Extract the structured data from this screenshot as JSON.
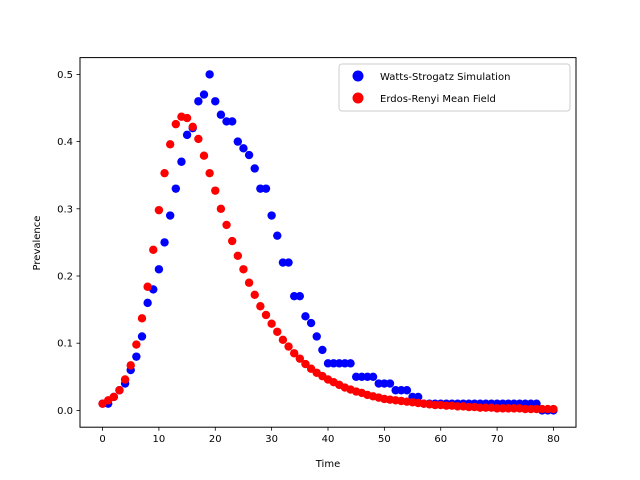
{
  "chart_data": {
    "type": "scatter",
    "title": "",
    "xlabel": "Time",
    "ylabel": "Prevalence",
    "xlim": [
      -4,
      84
    ],
    "ylim": [
      -0.025,
      0.525
    ],
    "xticks": [
      0,
      10,
      20,
      30,
      40,
      50,
      60,
      70,
      80
    ],
    "xtick_labels": [
      "0",
      "10",
      "20",
      "30",
      "40",
      "50",
      "60",
      "70",
      "80"
    ],
    "yticks": [
      0.0,
      0.1,
      0.2,
      0.3,
      0.4,
      0.5
    ],
    "ytick_labels": [
      "0.0",
      "0.1",
      "0.2",
      "0.3",
      "0.4",
      "0.5"
    ],
    "grid": false,
    "legend_position": "top-right",
    "x": [
      0,
      1,
      2,
      3,
      4,
      5,
      6,
      7,
      8,
      9,
      10,
      11,
      12,
      13,
      14,
      15,
      16,
      17,
      18,
      19,
      20,
      21,
      22,
      23,
      24,
      25,
      26,
      27,
      28,
      29,
      30,
      31,
      32,
      33,
      34,
      35,
      36,
      37,
      38,
      39,
      40,
      41,
      42,
      43,
      44,
      45,
      46,
      47,
      48,
      49,
      50,
      51,
      52,
      53,
      54,
      55,
      56,
      57,
      58,
      59,
      60,
      61,
      62,
      63,
      64,
      65,
      66,
      67,
      68,
      69,
      70,
      71,
      72,
      73,
      74,
      75,
      76,
      77,
      78,
      79,
      80
    ],
    "series": [
      {
        "name": "Watts-Strogatz Simulation",
        "color": "#0000ff",
        "values": [
          0.01,
          0.01,
          0.02,
          0.03,
          0.04,
          0.06,
          0.08,
          0.11,
          0.16,
          0.18,
          0.21,
          0.25,
          0.29,
          0.33,
          0.37,
          0.41,
          0.42,
          0.46,
          0.47,
          0.5,
          0.46,
          0.44,
          0.43,
          0.43,
          0.4,
          0.39,
          0.38,
          0.36,
          0.33,
          0.33,
          0.29,
          0.26,
          0.22,
          0.22,
          0.17,
          0.17,
          0.14,
          0.13,
          0.11,
          0.09,
          0.07,
          0.07,
          0.07,
          0.07,
          0.07,
          0.05,
          0.05,
          0.05,
          0.05,
          0.04,
          0.04,
          0.04,
          0.03,
          0.03,
          0.03,
          0.02,
          0.02,
          0.01,
          0.01,
          0.01,
          0.01,
          0.01,
          0.01,
          0.01,
          0.01,
          0.01,
          0.01,
          0.01,
          0.01,
          0.01,
          0.01,
          0.01,
          0.01,
          0.01,
          0.01,
          0.01,
          0.01,
          0.01,
          0.0,
          0.0,
          0.0
        ]
      },
      {
        "name": "Erdos-Renyi Mean Field",
        "color": "#ff0000",
        "values": [
          0.01,
          0.015,
          0.02,
          0.03,
          0.046,
          0.067,
          0.098,
          0.137,
          0.184,
          0.239,
          0.298,
          0.353,
          0.396,
          0.426,
          0.437,
          0.435,
          0.422,
          0.404,
          0.379,
          0.353,
          0.327,
          0.3,
          0.276,
          0.252,
          0.23,
          0.21,
          0.19,
          0.172,
          0.155,
          0.142,
          0.129,
          0.117,
          0.105,
          0.095,
          0.085,
          0.077,
          0.069,
          0.062,
          0.056,
          0.051,
          0.046,
          0.042,
          0.038,
          0.034,
          0.031,
          0.028,
          0.026,
          0.023,
          0.021,
          0.019,
          0.017,
          0.016,
          0.015,
          0.014,
          0.013,
          0.012,
          0.011,
          0.01,
          0.009,
          0.008,
          0.008,
          0.007,
          0.007,
          0.006,
          0.006,
          0.005,
          0.005,
          0.004,
          0.004,
          0.004,
          0.003,
          0.003,
          0.003,
          0.003,
          0.003,
          0.002,
          0.002,
          0.002,
          0.002,
          0.002,
          0.002
        ]
      }
    ]
  }
}
